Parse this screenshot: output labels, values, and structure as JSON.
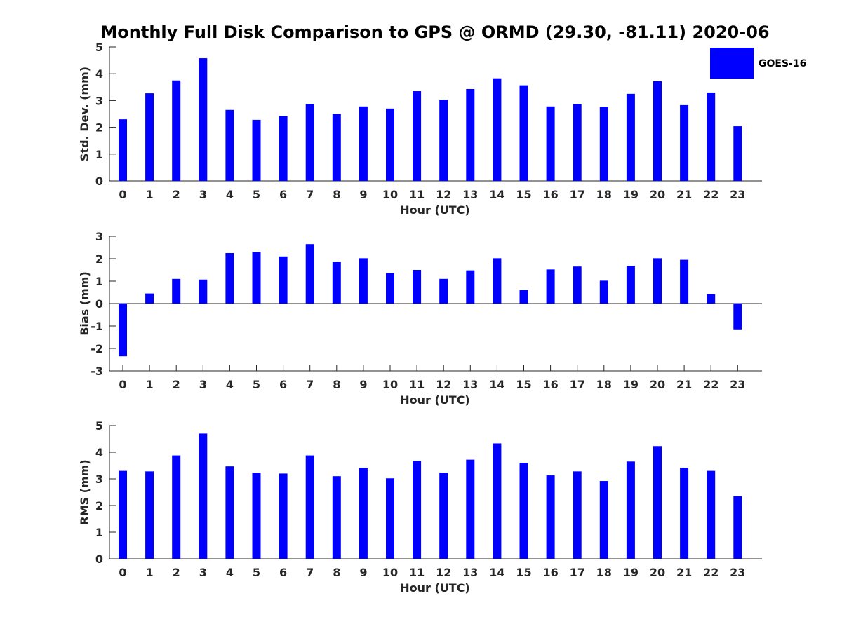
{
  "chart_data": {
    "type": "bar",
    "title": "Monthly Full Disk Comparison to GPS @ ORMD (29.30, -81.11) 2020-06",
    "legend": {
      "entries": [
        "GOES-16"
      ],
      "placement": "top-right"
    },
    "colors": {
      "bar": "#0000ff",
      "axis": "#262626",
      "background": "#ffffff"
    },
    "categories": [
      "0",
      "1",
      "2",
      "3",
      "4",
      "5",
      "6",
      "7",
      "8",
      "9",
      "10",
      "11",
      "12",
      "13",
      "14",
      "15",
      "16",
      "17",
      "18",
      "19",
      "20",
      "21",
      "22",
      "23"
    ],
    "panels": [
      {
        "id": "std",
        "ylabel": "Std. Dev. (mm)",
        "xlabel": "Hour (UTC)",
        "ylim": [
          0,
          5
        ],
        "yticks": [
          "0",
          "1",
          "2",
          "3",
          "4",
          "5"
        ],
        "series": [
          {
            "name": "GOES-16",
            "values": [
              2.3,
              3.27,
              3.75,
              4.58,
              2.65,
              2.28,
              2.42,
              2.87,
              2.5,
              2.78,
              2.7,
              3.35,
              3.03,
              3.43,
              3.83,
              3.57,
              2.78,
              2.87,
              2.77,
              3.25,
              3.72,
              2.83,
              3.3,
              2.04
            ]
          }
        ]
      },
      {
        "id": "bias",
        "ylabel": "Bias (mm)",
        "xlabel": "Hour (UTC)",
        "ylim": [
          -3,
          3
        ],
        "yticks": [
          "-3",
          "-2",
          "-1",
          "0",
          "1",
          "2",
          "3"
        ],
        "series": [
          {
            "name": "GOES-16",
            "values": [
              -2.35,
              0.45,
              1.1,
              1.07,
              2.25,
              2.3,
              2.1,
              2.65,
              1.87,
              2.02,
              1.36,
              1.5,
              1.1,
              1.48,
              2.02,
              0.6,
              1.52,
              1.65,
              1.02,
              1.68,
              2.02,
              1.95,
              0.42,
              -1.15
            ]
          }
        ]
      },
      {
        "id": "rms",
        "ylabel": "RMS (mm)",
        "xlabel": "Hour (UTC)",
        "ylim": [
          0,
          5
        ],
        "yticks": [
          "0",
          "1",
          "2",
          "3",
          "4",
          "5"
        ],
        "series": [
          {
            "name": "GOES-16",
            "values": [
              3.3,
              3.28,
              3.88,
              4.7,
              3.47,
              3.23,
              3.2,
              3.88,
              3.1,
              3.42,
              3.02,
              3.68,
              3.23,
              3.72,
              4.33,
              3.6,
              3.13,
              3.28,
              2.92,
              3.65,
              4.23,
              3.42,
              3.3,
              2.35
            ]
          }
        ]
      }
    ]
  }
}
